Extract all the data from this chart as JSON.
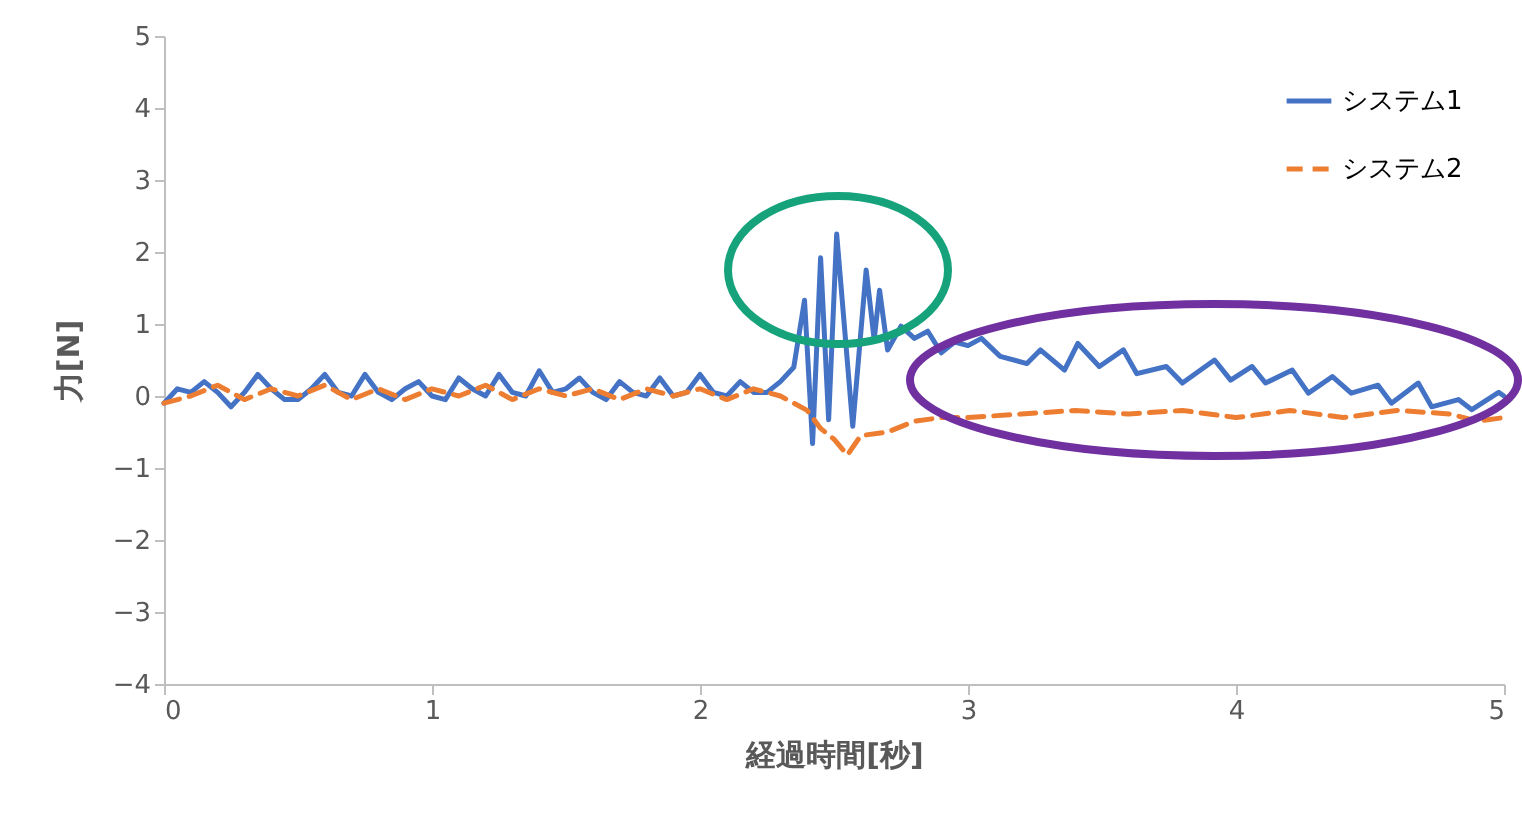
{
  "chart_data": {
    "type": "line",
    "xlabel": "経過時間[秒]",
    "ylabel": "力[N]",
    "xlim": [
      0,
      5
    ],
    "ylim": [
      -4,
      5
    ],
    "xticks": [
      0,
      1,
      2,
      3,
      4,
      5
    ],
    "yticks": [
      -4,
      -3,
      -2,
      -1,
      0,
      1,
      2,
      3,
      4,
      5
    ],
    "grid": false,
    "legend": "top right",
    "series": [
      {
        "name": "システム1",
        "color": "#4472c4",
        "line_style": "solid",
        "x": [
          0,
          0.05,
          0.1,
          0.15,
          0.2,
          0.25,
          0.3,
          0.35,
          0.4,
          0.45,
          0.5,
          0.55,
          0.6,
          0.65,
          0.7,
          0.75,
          0.8,
          0.85,
          0.9,
          0.95,
          1.0,
          1.05,
          1.1,
          1.15,
          1.2,
          1.25,
          1.3,
          1.35,
          1.4,
          1.45,
          1.5,
          1.55,
          1.6,
          1.65,
          1.7,
          1.75,
          1.8,
          1.85,
          1.9,
          1.95,
          2.0,
          2.05,
          2.1,
          2.15,
          2.2,
          2.25,
          2.3,
          2.35,
          2.39,
          2.42,
          2.45,
          2.48,
          2.51,
          2.57,
          2.62,
          2.65,
          2.67,
          2.7,
          2.75,
          2.8,
          2.85,
          2.9,
          2.95,
          3.0,
          3.05,
          3.12,
          3.22,
          3.27,
          3.36,
          3.41,
          3.49,
          3.58,
          3.63,
          3.74,
          3.8,
          3.92,
          3.98,
          4.06,
          4.11,
          4.21,
          4.27,
          4.36,
          4.43,
          4.53,
          4.58,
          4.68,
          4.73,
          4.83,
          4.88,
          4.98,
          5.0
        ],
        "values": [
          -0.1,
          0.1,
          0.05,
          0.2,
          0.05,
          -0.15,
          0.05,
          0.3,
          0.1,
          -0.05,
          -0.05,
          0.1,
          0.3,
          0.05,
          0.0,
          0.3,
          0.05,
          -0.05,
          0.1,
          0.2,
          0.0,
          -0.05,
          0.25,
          0.1,
          0.0,
          0.3,
          0.05,
          0.0,
          0.35,
          0.05,
          0.1,
          0.25,
          0.05,
          -0.05,
          0.2,
          0.05,
          0.0,
          0.25,
          0.0,
          0.05,
          0.3,
          0.05,
          0.0,
          0.2,
          0.05,
          0.05,
          0.2,
          0.4,
          1.33,
          -0.66,
          1.92,
          -0.33,
          2.25,
          -0.42,
          1.75,
          0.78,
          1.47,
          0.64,
          0.97,
          0.8,
          0.9,
          0.6,
          0.75,
          0.7,
          0.8,
          0.55,
          0.45,
          0.64,
          0.36,
          0.73,
          0.41,
          0.64,
          0.31,
          0.41,
          0.18,
          0.5,
          0.22,
          0.41,
          0.18,
          0.36,
          0.04,
          0.27,
          0.04,
          0.15,
          -0.1,
          0.18,
          -0.15,
          -0.05,
          -0.19,
          0.05,
          0.0
        ]
      },
      {
        "name": "システム2",
        "color": "#ed7d31",
        "line_style": "dashed",
        "x": [
          0,
          0.1,
          0.2,
          0.3,
          0.4,
          0.5,
          0.6,
          0.7,
          0.8,
          0.9,
          1.0,
          1.1,
          1.2,
          1.3,
          1.4,
          1.5,
          1.6,
          1.7,
          1.8,
          1.9,
          2.0,
          2.1,
          2.2,
          2.3,
          2.4,
          2.45,
          2.5,
          2.55,
          2.6,
          2.7,
          2.8,
          2.9,
          3.0,
          3.2,
          3.4,
          3.6,
          3.8,
          4.0,
          4.2,
          4.4,
          4.6,
          4.8,
          4.9,
          5.0
        ],
        "values": [
          -0.1,
          0.0,
          0.15,
          -0.05,
          0.1,
          0.0,
          0.15,
          -0.05,
          0.1,
          -0.05,
          0.1,
          0.0,
          0.15,
          -0.05,
          0.1,
          0.0,
          0.1,
          -0.05,
          0.1,
          0.0,
          0.1,
          -0.05,
          0.1,
          0.0,
          -0.2,
          -0.45,
          -0.6,
          -0.82,
          -0.55,
          -0.5,
          -0.35,
          -0.3,
          -0.3,
          -0.25,
          -0.2,
          -0.25,
          -0.2,
          -0.3,
          -0.2,
          -0.3,
          -0.2,
          -0.25,
          -0.35,
          -0.3
        ]
      }
    ]
  }
}
